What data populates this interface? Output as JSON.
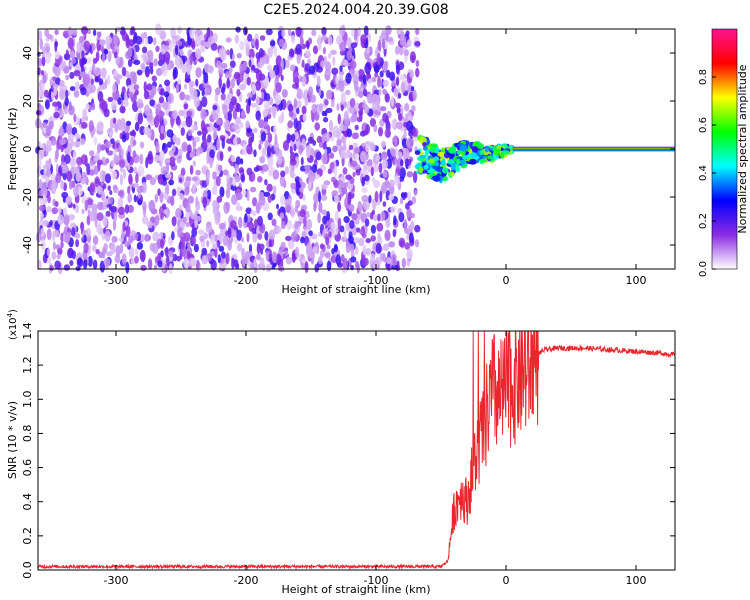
{
  "title": "C2E5.2024.004.20.39.G08",
  "chart_data": [
    {
      "type": "heatmap",
      "xlabel": "Height of straight line (km)",
      "ylabel": "Frequency (Hz)",
      "xlim": [
        -360,
        130
      ],
      "ylim": [
        -50,
        50
      ],
      "xticks": [
        -300,
        -200,
        -100,
        0,
        100
      ],
      "yticks": [
        -40,
        -20,
        0,
        20,
        40
      ],
      "colorbar": {
        "label": "Normalized spectral amplitude",
        "range": [
          0,
          1
        ],
        "ticks": [
          "0.0",
          "0.2",
          "0.4",
          "0.6",
          "0.8"
        ],
        "colors": [
          "#ffffff",
          "#8a2be2",
          "#0000ff",
          "#00ffff",
          "#00ff00",
          "#ffff00",
          "#ff0000",
          "#ff1493"
        ]
      },
      "regions": [
        {
          "x_range": [
            -360,
            -68
          ],
          "freq_range": [
            -50,
            50
          ],
          "amplitude": [
            0.0,
            0.25
          ],
          "description_ref": "noise"
        },
        {
          "x_range": [
            -68,
            5
          ],
          "freq_range": [
            -12,
            6
          ],
          "amplitude": [
            0.2,
            0.7
          ]
        },
        {
          "x_range": [
            5,
            130
          ],
          "freq_range": [
            -1,
            1
          ],
          "amplitude": [
            0.8,
            1.0
          ]
        }
      ]
    },
    {
      "type": "line",
      "xlabel": "Height of straight line (km)",
      "ylabel": "SNR (10 * v/v)",
      "yscale_label": "(x10",
      "yscale_exp": "4",
      "yscale_close": ")",
      "xlim": [
        -360,
        130
      ],
      "ylim": [
        0,
        1.4
      ],
      "xticks": [
        -300,
        -200,
        -100,
        0,
        100
      ],
      "yticks": [
        0.0,
        0.2,
        0.4,
        0.6,
        0.8,
        1.0,
        1.2,
        1.4
      ],
      "color": "#e8262b",
      "series": [
        {
          "values": [
            [
              -360,
              0.02
            ],
            [
              -300,
              0.02
            ],
            [
              -200,
              0.02
            ],
            [
              -100,
              0.02
            ],
            [
              -50,
              0.02
            ],
            [
              -45,
              0.05
            ],
            [
              -40,
              0.35
            ],
            [
              -35,
              0.45
            ],
            [
              -30,
              0.4
            ],
            [
              -25,
              0.6
            ],
            [
              -20,
              0.75
            ],
            [
              -15,
              0.9
            ],
            [
              -10,
              1.05
            ],
            [
              -5,
              1.0
            ],
            [
              0,
              1.05
            ],
            [
              5,
              1.1
            ],
            [
              10,
              1.15
            ],
            [
              15,
              1.18
            ],
            [
              20,
              1.22
            ],
            [
              25,
              1.27
            ],
            [
              30,
              1.29
            ],
            [
              40,
              1.3
            ],
            [
              60,
              1.3
            ],
            [
              80,
              1.29
            ],
            [
              100,
              1.28
            ],
            [
              120,
              1.27
            ],
            [
              130,
              1.26
            ]
          ]
        }
      ]
    }
  ]
}
